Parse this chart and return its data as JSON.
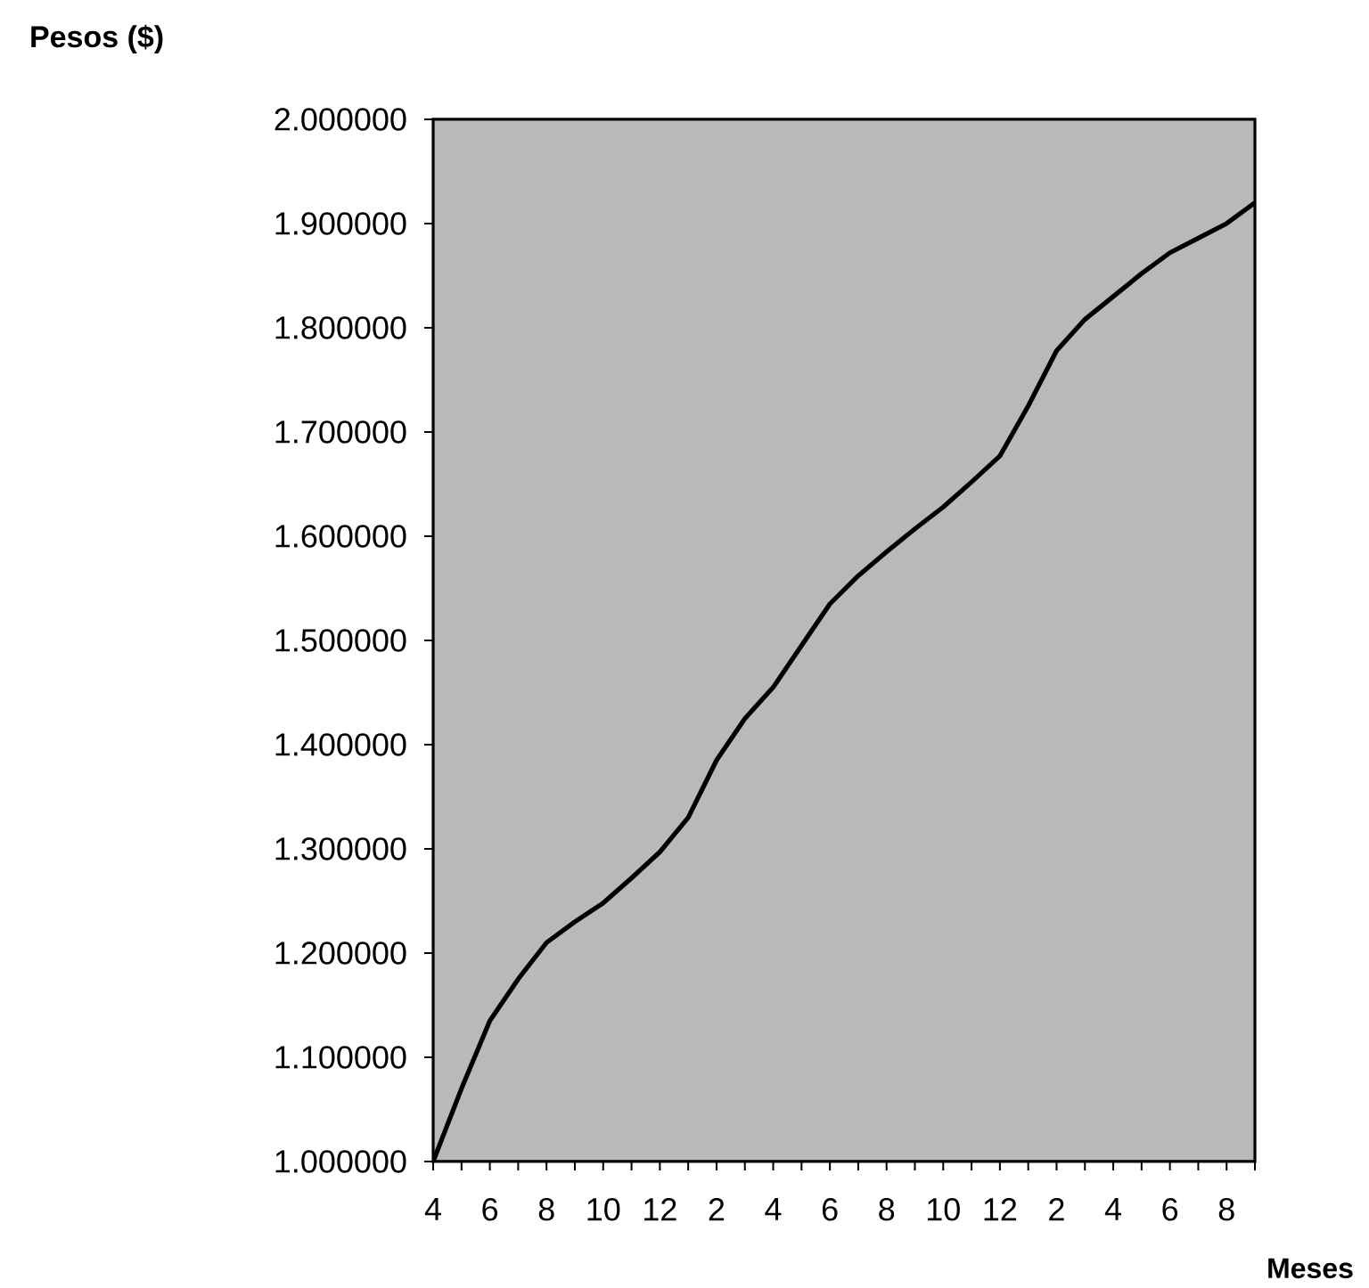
{
  "chart_data": {
    "type": "line",
    "xlabel": "Meses",
    "ylabel": "Pesos ($)",
    "categories": [
      "4",
      null,
      "6",
      null,
      "8",
      null,
      "10",
      null,
      "12",
      null,
      "2",
      null,
      "4",
      null,
      "6",
      null,
      "8",
      null,
      "10",
      null,
      "12",
      null,
      "2",
      null,
      "4",
      null,
      "6",
      null,
      "8",
      null
    ],
    "values": [
      1.0,
      1.07,
      1.135,
      1.175,
      1.21,
      1.23,
      1.248,
      1.272,
      1.297,
      1.33,
      1.385,
      1.425,
      1.455,
      1.495,
      1.535,
      1.562,
      1.585,
      1.607,
      1.628,
      1.652,
      1.677,
      1.725,
      1.778,
      1.808,
      1.83,
      1.852,
      1.872,
      1.886,
      1.9,
      1.92
    ],
    "color": "#000000",
    "ylim": [
      1.0,
      2.0
    ],
    "yticks": [
      {
        "value": 1.0,
        "label": "1.000000"
      },
      {
        "value": 1.1,
        "label": "1.100000"
      },
      {
        "value": 1.2,
        "label": "1.200000"
      },
      {
        "value": 1.3,
        "label": "1.300000"
      },
      {
        "value": 1.4,
        "label": "1.400000"
      },
      {
        "value": 1.5,
        "label": "1.500000"
      },
      {
        "value": 1.6,
        "label": "1.600000"
      },
      {
        "value": 1.7,
        "label": "1.700000"
      },
      {
        "value": 1.8,
        "label": "1.800000"
      },
      {
        "value": 1.9,
        "label": "1.900000"
      },
      {
        "value": 2.0,
        "label": "2.000000"
      }
    ]
  }
}
